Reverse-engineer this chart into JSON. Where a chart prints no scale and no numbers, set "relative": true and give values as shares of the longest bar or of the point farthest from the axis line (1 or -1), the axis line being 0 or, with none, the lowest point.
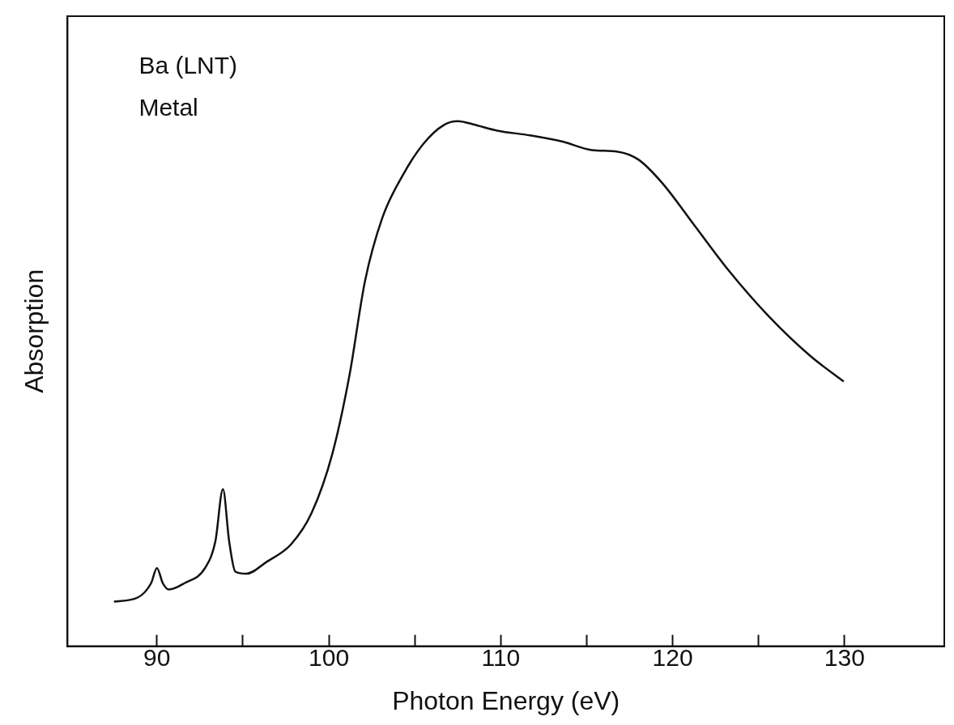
{
  "chart_data": {
    "type": "line",
    "xlabel": "Photon Energy (eV)",
    "ylabel": "Absorption",
    "relative": true,
    "annotations": [
      "Ba (LNT)",
      "Metal"
    ],
    "xlim": [
      84.8,
      135.8
    ],
    "xticks": [
      90,
      {
        "value": 95,
        "label": null
      },
      100,
      {
        "value": 105,
        "label": null
      },
      110,
      {
        "value": 115,
        "label": null
      },
      120,
      {
        "value": 125,
        "label": null
      },
      130
    ],
    "grid": false,
    "legend": false,
    "marker": "none",
    "line_style": "solid",
    "series": [
      {
        "color": "#111111",
        "x": [
          87.5,
          88.9,
          89.66,
          90,
          90.34,
          90.7,
          91.6,
          92.8,
          93.4,
          93.84,
          94.2,
          94.56,
          95.2,
          96.4,
          97.8,
          99.0,
          100.2,
          101.2,
          102.1,
          103.1,
          104.3,
          105.5,
          106.7,
          107.5,
          108.4,
          109.8,
          111.7,
          113.6,
          115.3,
          116.8,
          118.0,
          119.4,
          121.3,
          123.2,
          125.6,
          128.0,
          129.95
        ],
        "values": [
          0.085,
          0.093,
          0.12,
          0.149,
          0.12,
          0.108,
          0.12,
          0.149,
          0.2,
          0.299,
          0.2,
          0.142,
          0.138,
          0.161,
          0.194,
          0.254,
          0.366,
          0.516,
          0.695,
          0.815,
          0.897,
          0.957,
          0.993,
          1,
          0.994,
          0.982,
          0.973,
          0.961,
          0.945,
          0.942,
          0.927,
          0.882,
          0.8,
          0.718,
          0.628,
          0.553,
          0.504
        ]
      }
    ]
  }
}
